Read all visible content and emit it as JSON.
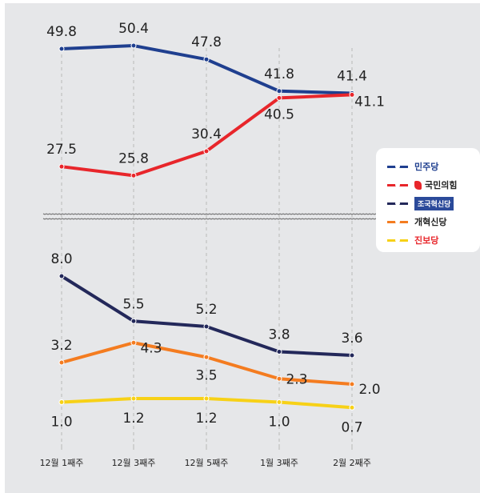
{
  "chart_data": {
    "type": "line",
    "categories": [
      "12월 1째주",
      "12월 3째주",
      "12월 5째주",
      "1월 3째주",
      "2월 2째주"
    ],
    "broken_axis": true,
    "grid": "vertical dashed",
    "legend_placement": "right",
    "series": [
      {
        "name": "민주당",
        "color": "#1f3f8f",
        "values": [
          49.8,
          50.4,
          47.8,
          41.8,
          41.4
        ],
        "panel": "upper"
      },
      {
        "name": "국민의힘",
        "color": "#e8262b",
        "values": [
          27.5,
          25.8,
          30.4,
          40.5,
          41.1
        ],
        "panel": "upper"
      },
      {
        "name": "조국혁신당",
        "color": "#23285a",
        "values": [
          8.0,
          5.5,
          5.2,
          3.8,
          3.6
        ],
        "panel": "lower"
      },
      {
        "name": "개혁신당",
        "color": "#f47c20",
        "values": [
          3.2,
          4.3,
          3.5,
          2.3,
          2.0
        ],
        "panel": "lower"
      },
      {
        "name": "진보당",
        "color": "#f7d117",
        "values": [
          1.0,
          1.2,
          1.2,
          1.0,
          0.7
        ],
        "panel": "lower"
      }
    ]
  }
}
